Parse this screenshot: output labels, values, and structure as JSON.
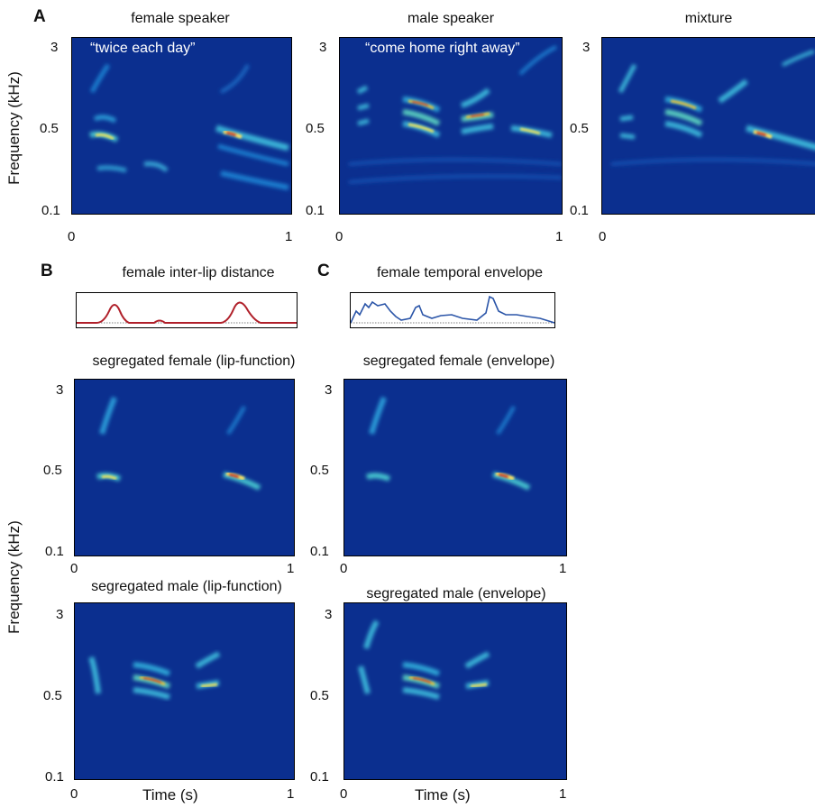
{
  "panel_letters": {
    "a": "A",
    "b": "B",
    "c": "C"
  },
  "panel_a": {
    "titles": [
      "female speaker",
      "male speaker",
      "mixture"
    ],
    "quotes": [
      "“twice each day”",
      "“come home right away”"
    ],
    "ylabel": "Frequency  (kHz)",
    "yticks": [
      "3",
      "0.5",
      "0.1"
    ],
    "xticks": [
      "0",
      "1"
    ]
  },
  "panel_b": {
    "trace_title": "female inter-lip distance",
    "seg_female_title": "segregated female (lip-function)",
    "seg_male_title": "segregated male (lip-function)"
  },
  "panel_c": {
    "trace_title": "female temporal envelope",
    "seg_female_title": "segregated female (envelope)",
    "seg_male_title": "segregated male (envelope)"
  },
  "lower": {
    "ylabel": "Frequency  (kHz)",
    "xlabel": "Time (s)",
    "yticks": [
      "3",
      "0.5",
      "0.1"
    ],
    "xticks": [
      "0",
      "1"
    ]
  },
  "colors": {
    "spectrogram_bg": "#0b2f8f",
    "lip_trace": "#b0202a",
    "envelope_trace": "#2b55a8"
  }
}
